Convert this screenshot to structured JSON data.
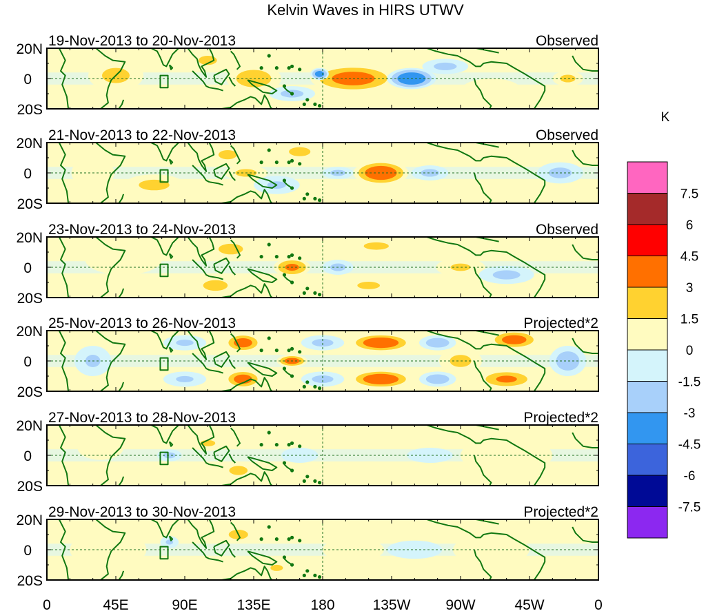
{
  "chart_data": {
    "type": "heatmap",
    "title": "Kelvin Waves in HIRS UTWV",
    "x_ticks": [
      "0",
      "45E",
      "90E",
      "135E",
      "180",
      "135W",
      "90W",
      "45W",
      "0"
    ],
    "y_ticks": [
      "20N",
      "0",
      "20S"
    ],
    "xlim": [
      0,
      360
    ],
    "ylim": [
      -20,
      20
    ],
    "colorbar": {
      "unit": "K",
      "levels": [
        "7.5",
        "6",
        "4.5",
        "3",
        "1.5",
        "0",
        "-1.5",
        "-3",
        "-4.5",
        "-6",
        "-7.5"
      ],
      "colors": [
        "#ff66c0",
        "#a52a2a",
        "#ff0000",
        "#ff7000",
        "#ffd230",
        "#fffbc0",
        "#d4f4fb",
        "#a8d0fa",
        "#3296f0",
        "#3c64dc",
        "#000a96",
        "#8c28f0"
      ]
    },
    "panels": [
      {
        "dates": "19-Nov-2013 to 20-Nov-2013",
        "label": "Observed",
        "blobs": [
          {
            "lon": 200,
            "lat": 0,
            "rx": 28,
            "ry": 9,
            "v": 4
          },
          {
            "lon": 135,
            "lat": 0,
            "rx": 18,
            "ry": 9,
            "v": 2.5
          },
          {
            "lon": 105,
            "lat": 12,
            "rx": 12,
            "ry": 6,
            "v": 2
          },
          {
            "lon": 45,
            "lat": 2,
            "rx": 18,
            "ry": 10,
            "v": 2
          },
          {
            "lon": 178,
            "lat": 3,
            "rx": 6,
            "ry": 4,
            "v": -4
          },
          {
            "lon": 238,
            "lat": 0,
            "rx": 16,
            "ry": 7,
            "v": -4.5
          },
          {
            "lon": 160,
            "lat": -10,
            "rx": 15,
            "ry": 5,
            "v": -2
          },
          {
            "lon": 260,
            "lat": 8,
            "rx": 15,
            "ry": 5,
            "v": -2
          },
          {
            "lon": 290,
            "lat": -8,
            "rx": 20,
            "ry": 8,
            "v": 1.5
          },
          {
            "lon": 340,
            "lat": 0,
            "rx": 10,
            "ry": 5,
            "v": 2
          }
        ]
      },
      {
        "dates": "21-Nov-2013 to 22-Nov-2013",
        "label": "Observed",
        "blobs": [
          {
            "lon": 218,
            "lat": 0,
            "rx": 18,
            "ry": 8,
            "v": 4.5
          },
          {
            "lon": 118,
            "lat": 12,
            "rx": 12,
            "ry": 6,
            "v": 2
          },
          {
            "lon": 130,
            "lat": 0,
            "rx": 14,
            "ry": 5,
            "v": 2
          },
          {
            "lon": 70,
            "lat": -8,
            "rx": 20,
            "ry": 7,
            "v": 2
          },
          {
            "lon": 165,
            "lat": 14,
            "rx": 14,
            "ry": 6,
            "v": 2
          },
          {
            "lon": 30,
            "lat": 0,
            "rx": 14,
            "ry": 10,
            "v": 1.5
          },
          {
            "lon": 190,
            "lat": 0,
            "rx": 10,
            "ry": 4,
            "v": -2
          },
          {
            "lon": 250,
            "lat": 0,
            "rx": 12,
            "ry": 5,
            "v": -2
          },
          {
            "lon": 150,
            "lat": -8,
            "rx": 15,
            "ry": 6,
            "v": -1.8
          },
          {
            "lon": 335,
            "lat": 0,
            "rx": 15,
            "ry": 7,
            "v": -2
          }
        ]
      },
      {
        "dates": "23-Nov-2013 to 24-Nov-2013",
        "label": "Observed",
        "blobs": [
          {
            "lon": 160,
            "lat": 0,
            "rx": 12,
            "ry": 6,
            "v": 3.5
          },
          {
            "lon": 120,
            "lat": 12,
            "rx": 16,
            "ry": 7,
            "v": 2
          },
          {
            "lon": 110,
            "lat": -12,
            "rx": 16,
            "ry": 7,
            "v": 2
          },
          {
            "lon": 215,
            "lat": 14,
            "rx": 20,
            "ry": 6,
            "v": 1.8
          },
          {
            "lon": 210,
            "lat": -12,
            "rx": 18,
            "ry": 6,
            "v": 1.8
          },
          {
            "lon": 270,
            "lat": 0,
            "rx": 16,
            "ry": 6,
            "v": 1.8
          },
          {
            "lon": 50,
            "lat": 5,
            "rx": 25,
            "ry": 10,
            "v": 1.5
          },
          {
            "lon": 190,
            "lat": 0,
            "rx": 10,
            "ry": 5,
            "v": -2
          },
          {
            "lon": 300,
            "lat": -5,
            "rx": 18,
            "ry": 6,
            "v": -2
          },
          {
            "lon": 340,
            "lat": 12,
            "rx": 15,
            "ry": 6,
            "v": 1.5
          }
        ]
      },
      {
        "dates": "25-Nov-2013 to 26-Nov-2013",
        "label": "Projected*2",
        "blobs": [
          {
            "lon": 218,
            "lat": 12,
            "rx": 20,
            "ry": 6,
            "v": 4.5
          },
          {
            "lon": 218,
            "lat": -12,
            "rx": 20,
            "ry": 6,
            "v": 4.5
          },
          {
            "lon": 128,
            "lat": 12,
            "rx": 12,
            "ry": 6,
            "v": 4
          },
          {
            "lon": 128,
            "lat": -12,
            "rx": 12,
            "ry": 6,
            "v": 4
          },
          {
            "lon": 160,
            "lat": 0,
            "rx": 10,
            "ry": 4,
            "v": 4
          },
          {
            "lon": 305,
            "lat": 14,
            "rx": 16,
            "ry": 6,
            "v": 4
          },
          {
            "lon": 300,
            "lat": -12,
            "rx": 18,
            "ry": 6,
            "v": 3.5
          },
          {
            "lon": 270,
            "lat": 0,
            "rx": 14,
            "ry": 8,
            "v": 2
          },
          {
            "lon": 180,
            "lat": 12,
            "rx": 14,
            "ry": 5,
            "v": -2
          },
          {
            "lon": 180,
            "lat": -12,
            "rx": 14,
            "ry": 5,
            "v": -2
          },
          {
            "lon": 255,
            "lat": 12,
            "rx": 12,
            "ry": 5,
            "v": -2.5
          },
          {
            "lon": 255,
            "lat": -12,
            "rx": 12,
            "ry": 5,
            "v": -2.5
          },
          {
            "lon": 340,
            "lat": 0,
            "rx": 12,
            "ry": 10,
            "v": -2.5
          },
          {
            "lon": 90,
            "lat": 12,
            "rx": 14,
            "ry": 5,
            "v": -1.8
          },
          {
            "lon": 90,
            "lat": -12,
            "rx": 14,
            "ry": 5,
            "v": -1.8
          },
          {
            "lon": 30,
            "lat": 0,
            "rx": 12,
            "ry": 10,
            "v": -1.8
          }
        ]
      },
      {
        "dates": "27-Nov-2013 to 28-Nov-2013",
        "label": "Projected*2",
        "blobs": [
          {
            "lon": 125,
            "lat": -10,
            "rx": 12,
            "ry": 6,
            "v": 2
          },
          {
            "lon": 105,
            "lat": 8,
            "rx": 12,
            "ry": 5,
            "v": 1.8
          },
          {
            "lon": 210,
            "lat": 12,
            "rx": 25,
            "ry": 6,
            "v": 1.5
          },
          {
            "lon": 210,
            "lat": -10,
            "rx": 25,
            "ry": 6,
            "v": 1.5
          },
          {
            "lon": 300,
            "lat": 0,
            "rx": 30,
            "ry": 12,
            "v": 1.5
          },
          {
            "lon": 250,
            "lat": 0,
            "rx": 15,
            "ry": 5,
            "v": -1.5
          },
          {
            "lon": 165,
            "lat": 0,
            "rx": 12,
            "ry": 5,
            "v": -1.5
          },
          {
            "lon": 80,
            "lat": 0,
            "rx": 8,
            "ry": 4,
            "v": -2
          },
          {
            "lon": 35,
            "lat": 5,
            "rx": 15,
            "ry": 8,
            "v": 1.5
          }
        ]
      },
      {
        "dates": "29-Nov-2013 to 30-Nov-2013",
        "label": "Projected*2",
        "blobs": [
          {
            "lon": 125,
            "lat": 10,
            "rx": 10,
            "ry": 5,
            "v": 2.5
          },
          {
            "lon": 150,
            "lat": -12,
            "rx": 10,
            "ry": 5,
            "v": 1.8
          },
          {
            "lon": 200,
            "lat": 0,
            "rx": 20,
            "ry": 8,
            "v": 1.5
          },
          {
            "lon": 40,
            "lat": 0,
            "rx": 25,
            "ry": 12,
            "v": 1.5
          },
          {
            "lon": 290,
            "lat": 0,
            "rx": 25,
            "ry": 10,
            "v": 1.5
          },
          {
            "lon": 80,
            "lat": 5,
            "rx": 6,
            "ry": 4,
            "v": -1.8
          },
          {
            "lon": 240,
            "lat": 0,
            "rx": 18,
            "ry": 6,
            "v": -1.2
          }
        ]
      }
    ]
  }
}
